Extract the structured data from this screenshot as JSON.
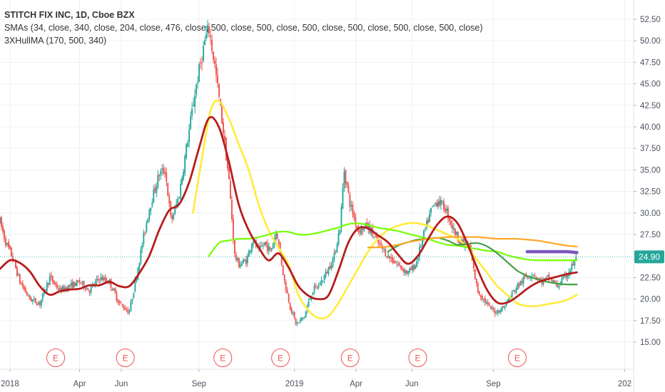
{
  "legend": {
    "title": "STITCH FIX INC, 1D, Cboe BZX",
    "smas": "SMAs (34, close, 340, close, 204, close, 476, close, 500, close, 500, close, 500, close, 500, close, 500, close, 500, close)",
    "hull": "3XHullMA (170, 500, 340)"
  },
  "price_badge": {
    "label": "24.90",
    "color": "#26a69a"
  },
  "colors": {
    "up": "#26a69a",
    "down": "#ef5350",
    "sma_yellow": "#ffeb3b",
    "sma_green": "#76ff03",
    "sma_darkgreen": "#43a047",
    "sma_orange": "#ffa726",
    "sma_purple": "#7e57c2",
    "hull_red": "#b71c1c",
    "earnings": "#ef5350",
    "grid": "#eef0f3",
    "axis_text": "#4c525e"
  },
  "chart_data": {
    "type": "line",
    "title": "STITCH FIX INC, 1D, Cboe BZX",
    "y_ticks": [
      "52.50",
      "50.00",
      "47.50",
      "45.00",
      "42.50",
      "40.00",
      "37.50",
      "35.00",
      "32.50",
      "30.00",
      "27.50",
      "22.50",
      "20.00",
      "17.50",
      "15.00"
    ],
    "x_ticks": [
      "2018",
      "Apr",
      "Jun",
      "Sep",
      "2019",
      "Apr",
      "Jun",
      "Sep",
      "202"
    ],
    "ylim": [
      14.5,
      53.5
    ],
    "last_price": 24.9,
    "earnings_markers": [
      {
        "label": "E",
        "t": 2.8
      },
      {
        "label": "E",
        "t": 6.3
      },
      {
        "label": "E",
        "t": 11.2
      },
      {
        "label": "E",
        "t": 14.1
      },
      {
        "label": "E",
        "t": 17.6
      },
      {
        "label": "E",
        "t": 21.0
      },
      {
        "label": "E",
        "t": 26.0
      }
    ],
    "price_path": [
      [
        0,
        29
      ],
      [
        0.3,
        26.5
      ],
      [
        0.6,
        25
      ],
      [
        1,
        22
      ],
      [
        1.5,
        20
      ],
      [
        2,
        19.5
      ],
      [
        2.5,
        22.5
      ],
      [
        3,
        21
      ],
      [
        3.5,
        21.5
      ],
      [
        4,
        22
      ],
      [
        4.5,
        21
      ],
      [
        5,
        22.5
      ],
      [
        5.5,
        22
      ],
      [
        6,
        19.5
      ],
      [
        6.5,
        18.5
      ],
      [
        6.8,
        22
      ],
      [
        7.2,
        27
      ],
      [
        7.5,
        30.5
      ],
      [
        8,
        34.5
      ],
      [
        8.3,
        35
      ],
      [
        8.6,
        29
      ],
      [
        9,
        32
      ],
      [
        9.4,
        38
      ],
      [
        9.8,
        44
      ],
      [
        10.3,
        50
      ],
      [
        10.5,
        51.5
      ],
      [
        10.8,
        47
      ],
      [
        11.2,
        40
      ],
      [
        11.5,
        34
      ],
      [
        11.8,
        25
      ],
      [
        12,
        24
      ],
      [
        12.4,
        24.5
      ],
      [
        12.7,
        27
      ],
      [
        13,
        25.5
      ],
      [
        13.3,
        26.5
      ],
      [
        13.6,
        25.5
      ],
      [
        13.9,
        28
      ],
      [
        14.3,
        22
      ],
      [
        14.6,
        19
      ],
      [
        14.9,
        17
      ],
      [
        15.3,
        18
      ],
      [
        15.7,
        21
      ],
      [
        16,
        21.5
      ],
      [
        16.4,
        23
      ],
      [
        16.8,
        25
      ],
      [
        17.1,
        28.5
      ],
      [
        17.3,
        35
      ],
      [
        17.6,
        31
      ],
      [
        18,
        28
      ],
      [
        18.5,
        28.5
      ],
      [
        19,
        26.5
      ],
      [
        19.5,
        25
      ],
      [
        20,
        24
      ],
      [
        20.5,
        23
      ],
      [
        20.9,
        24
      ],
      [
        21.3,
        27.5
      ],
      [
        21.7,
        30.5
      ],
      [
        22,
        31.5
      ],
      [
        22.4,
        30.5
      ],
      [
        22.8,
        28
      ],
      [
        23.2,
        26.5
      ],
      [
        23.6,
        26
      ],
      [
        24,
        21
      ],
      [
        24.3,
        20
      ],
      [
        24.6,
        19
      ],
      [
        24.9,
        18.5
      ],
      [
        25.3,
        19
      ],
      [
        25.7,
        20.5
      ],
      [
        26,
        21.5
      ],
      [
        26.4,
        22.5
      ],
      [
        26.8,
        23
      ],
      [
        27.2,
        22
      ],
      [
        27.6,
        22.5
      ],
      [
        28,
        21.5
      ],
      [
        28.4,
        22.5
      ],
      [
        28.8,
        24
      ],
      [
        29,
        24.9
      ]
    ],
    "series": [
      {
        "id": "yellow_sma",
        "points": [
          [
            9.7,
            30
          ],
          [
            10.2,
            37
          ],
          [
            10.6,
            42
          ],
          [
            11,
            43
          ],
          [
            11.5,
            41
          ],
          [
            12,
            38
          ],
          [
            12.5,
            35
          ],
          [
            13,
            31
          ],
          [
            13.5,
            28
          ],
          [
            14,
            26
          ],
          [
            14.5,
            24
          ],
          [
            15,
            20.5
          ],
          [
            15.5,
            18.7
          ],
          [
            16,
            17.8
          ],
          [
            16.5,
            18
          ],
          [
            17,
            19.5
          ],
          [
            17.5,
            21.5
          ],
          [
            18,
            23.5
          ],
          [
            18.5,
            25.5
          ],
          [
            19,
            27
          ],
          [
            19.5,
            28
          ],
          [
            20,
            28.5
          ],
          [
            20.5,
            28.8
          ],
          [
            21,
            28.8
          ],
          [
            21.5,
            28.5
          ],
          [
            22,
            28
          ],
          [
            22.5,
            27.5
          ],
          [
            23,
            27
          ],
          [
            23.5,
            26
          ],
          [
            24,
            24.5
          ],
          [
            24.5,
            23
          ],
          [
            25,
            21.5
          ],
          [
            25.5,
            20.5
          ],
          [
            26,
            19.5
          ],
          [
            26.5,
            19.2
          ],
          [
            27,
            19.2
          ],
          [
            27.5,
            19.4
          ],
          [
            28,
            19.6
          ],
          [
            28.5,
            19.9
          ],
          [
            29,
            20.5
          ]
        ]
      },
      {
        "id": "green_sma",
        "points": [
          [
            10.5,
            25
          ],
          [
            11,
            26.5
          ],
          [
            11.5,
            26.8
          ],
          [
            12,
            27
          ],
          [
            12.5,
            27
          ],
          [
            13,
            27.2
          ],
          [
            13.5,
            27.5
          ],
          [
            14,
            27.8
          ],
          [
            14.5,
            27.8
          ],
          [
            15,
            27.5
          ],
          [
            15.5,
            27.5
          ],
          [
            16,
            27.7
          ],
          [
            16.5,
            28
          ],
          [
            17,
            28.3
          ],
          [
            17.5,
            28.7
          ],
          [
            18,
            28.8
          ],
          [
            18.5,
            28.6
          ],
          [
            19,
            28.3
          ],
          [
            19.5,
            28.1
          ],
          [
            20,
            27.9
          ],
          [
            20.5,
            27.6
          ],
          [
            21,
            27.3
          ],
          [
            21.5,
            27
          ],
          [
            22,
            26.6
          ],
          [
            22.5,
            26.3
          ],
          [
            23,
            26.2
          ],
          [
            23.5,
            26
          ],
          [
            24,
            25.8
          ],
          [
            24.5,
            25.6
          ],
          [
            25,
            25.5
          ],
          [
            25.5,
            25.1
          ],
          [
            26,
            24.8
          ],
          [
            26.5,
            24.6
          ],
          [
            27,
            24.5
          ],
          [
            27.5,
            24.5
          ],
          [
            28,
            24.5
          ],
          [
            28.5,
            24.5
          ],
          [
            29,
            24.5
          ]
        ]
      },
      {
        "id": "darkgreen_sma",
        "points": [
          [
            19.5,
            25.5
          ],
          [
            20,
            26.2
          ],
          [
            20.5,
            26.6
          ],
          [
            21,
            26.9
          ],
          [
            21.5,
            27
          ],
          [
            22,
            27.1
          ],
          [
            22.5,
            26.8
          ],
          [
            23,
            26.3
          ],
          [
            23.5,
            26.4
          ],
          [
            24,
            26.5
          ],
          [
            24.5,
            26.1
          ],
          [
            25,
            25.3
          ],
          [
            25.5,
            24.3
          ],
          [
            26,
            23.3
          ],
          [
            26.5,
            22.7
          ],
          [
            27,
            22.3
          ],
          [
            27.5,
            22
          ],
          [
            28,
            21.8
          ],
          [
            28.5,
            21.7
          ],
          [
            29,
            21.7
          ]
        ]
      },
      {
        "id": "orange_sma",
        "points": [
          [
            18.5,
            26
          ],
          [
            19,
            26
          ],
          [
            19.5,
            26.1
          ],
          [
            20,
            26.3
          ],
          [
            20.5,
            26.6
          ],
          [
            21,
            26.8
          ],
          [
            21.5,
            27
          ],
          [
            22,
            27.1
          ],
          [
            22.5,
            27.2
          ],
          [
            23,
            27.2
          ],
          [
            23.5,
            27.2
          ],
          [
            24,
            27.2
          ],
          [
            24.5,
            27.1
          ],
          [
            25,
            27
          ],
          [
            25.5,
            27
          ],
          [
            26,
            27
          ],
          [
            26.5,
            26.9
          ],
          [
            27,
            26.8
          ],
          [
            27.5,
            26.6
          ],
          [
            28,
            26.4
          ],
          [
            28.5,
            26.2
          ],
          [
            29,
            26.1
          ]
        ]
      },
      {
        "id": "purple_sma",
        "points": [
          [
            26.5,
            25.5
          ],
          [
            27,
            25.5
          ],
          [
            27.5,
            25.5
          ],
          [
            28,
            25.5
          ],
          [
            28.5,
            25.5
          ],
          [
            29,
            25.4
          ]
        ]
      },
      {
        "id": "hull_ma",
        "points": [
          [
            0,
            23.5
          ],
          [
            0.5,
            24.5
          ],
          [
            1,
            24.2
          ],
          [
            1.5,
            23.2
          ],
          [
            2,
            21.5
          ],
          [
            2.5,
            20.5
          ],
          [
            3,
            20.9
          ],
          [
            3.5,
            21.1
          ],
          [
            4,
            21.2
          ],
          [
            4.5,
            21.6
          ],
          [
            5,
            21.6
          ],
          [
            5.5,
            22
          ],
          [
            6,
            21.5
          ],
          [
            6.5,
            21.5
          ],
          [
            7,
            23
          ],
          [
            7.5,
            25
          ],
          [
            8,
            28
          ],
          [
            8.5,
            30.3
          ],
          [
            9,
            31
          ],
          [
            9.5,
            33.5
          ],
          [
            10,
            37.5
          ],
          [
            10.5,
            41
          ],
          [
            11,
            40
          ],
          [
            11.5,
            36
          ],
          [
            12,
            31
          ],
          [
            12.5,
            28
          ],
          [
            13,
            26
          ],
          [
            13.5,
            24.5
          ],
          [
            14,
            25.3
          ],
          [
            14.5,
            23.7
          ],
          [
            15,
            21.5
          ],
          [
            15.5,
            20.4
          ],
          [
            16,
            20
          ],
          [
            16.5,
            20.4
          ],
          [
            17,
            23.2
          ],
          [
            17.5,
            26.5
          ],
          [
            18,
            28.2
          ],
          [
            18.5,
            28.2
          ],
          [
            19,
            27.4
          ],
          [
            19.5,
            26.6
          ],
          [
            20,
            25.2
          ],
          [
            20.5,
            24.1
          ],
          [
            21,
            25
          ],
          [
            21.5,
            26.9
          ],
          [
            22,
            28.7
          ],
          [
            22.5,
            29.6
          ],
          [
            23,
            28.8
          ],
          [
            23.5,
            26.4
          ],
          [
            24,
            23.5
          ],
          [
            24.5,
            21
          ],
          [
            25,
            19.6
          ],
          [
            25.5,
            19.6
          ],
          [
            26,
            20.3
          ],
          [
            26.5,
            21.2
          ],
          [
            27,
            21.9
          ],
          [
            27.5,
            22.3
          ],
          [
            28,
            22.6
          ],
          [
            28.5,
            22.9
          ],
          [
            29,
            23.1
          ]
        ]
      }
    ]
  }
}
